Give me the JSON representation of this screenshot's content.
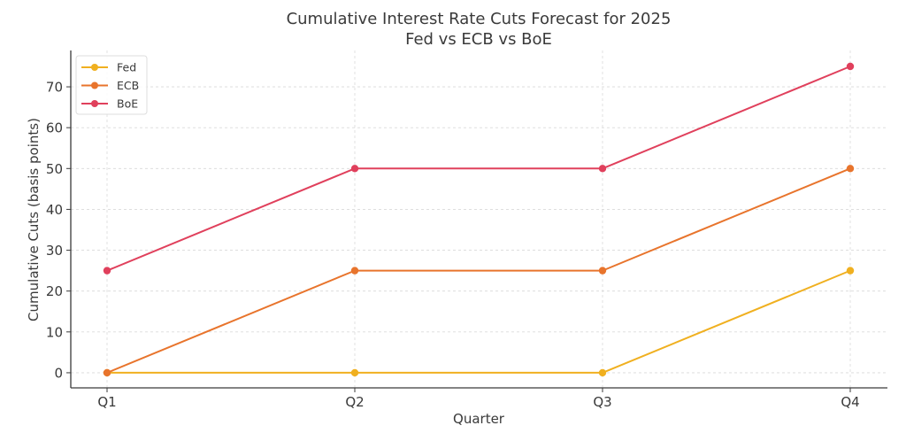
{
  "chart_data": {
    "type": "line",
    "title": "Cumulative Interest Rate Cuts Forecast for 2025",
    "subtitle": "Fed vs ECB vs BoE",
    "xlabel": "Quarter",
    "ylabel": "Cumulative Cuts (basis points)",
    "categories": [
      "Q1",
      "Q2",
      "Q3",
      "Q4"
    ],
    "yticks": [
      0,
      10,
      20,
      30,
      40,
      50,
      60,
      70
    ],
    "ylim": [
      -3.7,
      78.9
    ],
    "grid": true,
    "legend_position": "top-left",
    "series": [
      {
        "name": "Fed",
        "color": "#f0b020",
        "values": [
          0,
          0,
          0,
          25
        ]
      },
      {
        "name": "ECB",
        "color": "#e8742c",
        "values": [
          0,
          25,
          25,
          50
        ]
      },
      {
        "name": "BoE",
        "color": "#e0405c",
        "values": [
          25,
          50,
          50,
          75
        ]
      }
    ]
  }
}
